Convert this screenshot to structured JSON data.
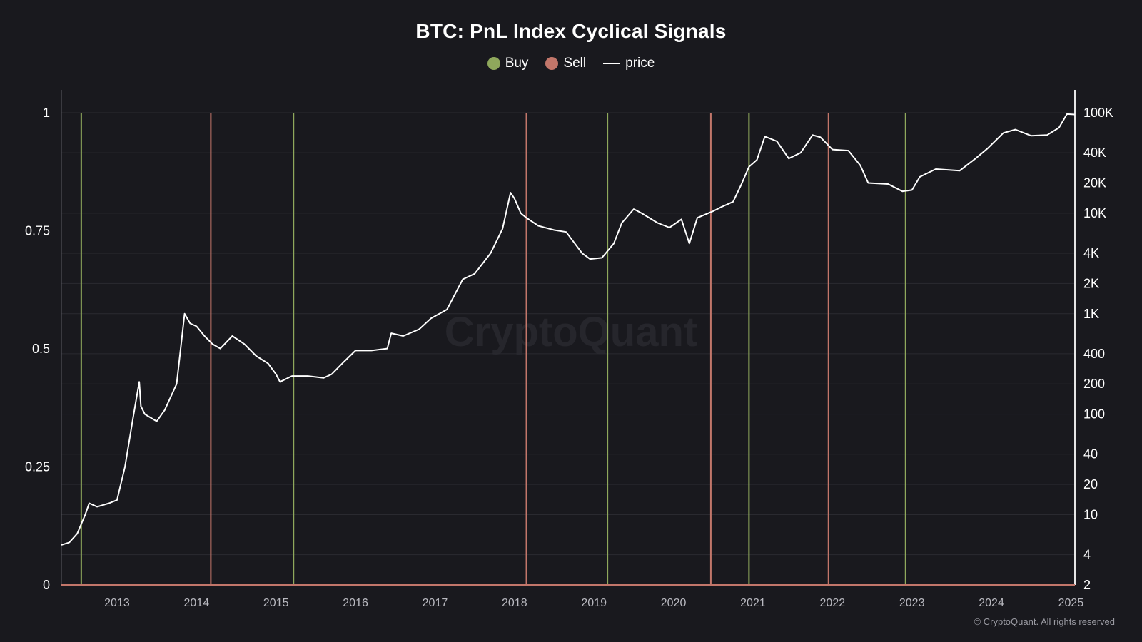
{
  "chart_data": {
    "type": "line",
    "title": "BTC: PnL Index Cyclical Signals",
    "legend": [
      {
        "name": "Buy",
        "color": "#8fa85c",
        "symbol": "dot"
      },
      {
        "name": "Sell",
        "color": "#c2766a",
        "symbol": "dot"
      },
      {
        "name": "price",
        "color": "#ffffff",
        "symbol": "line"
      }
    ],
    "legend_placement": "top-center",
    "grid": true,
    "x_axis": {
      "tick_labels": [
        "2013",
        "2014",
        "2015",
        "2016",
        "2017",
        "2018",
        "2019",
        "2020",
        "2021",
        "2022",
        "2023",
        "2024",
        "2025"
      ],
      "range": [
        2012.3,
        2025.05
      ]
    },
    "y_left": {
      "tick_labels": [
        "0",
        "0.25",
        "0.5",
        "0.75",
        "1"
      ],
      "ticks": [
        0,
        0.25,
        0.5,
        0.75,
        1
      ],
      "range": [
        0,
        1
      ]
    },
    "y_right": {
      "scale": "log",
      "tick_labels": [
        "2",
        "4",
        "10",
        "20",
        "40",
        "100",
        "200",
        "400",
        "1K",
        "2K",
        "4K",
        "10K",
        "20K",
        "40K",
        "100K"
      ],
      "ticks": [
        2,
        4,
        10,
        20,
        40,
        100,
        200,
        400,
        1000,
        2000,
        4000,
        10000,
        20000,
        40000,
        100000
      ],
      "range": [
        2,
        100000
      ]
    },
    "signals": {
      "buy": [
        2012.55,
        2015.22,
        2019.17,
        2020.95,
        2022.92
      ],
      "sell": [
        2014.18,
        2018.15,
        2020.47,
        2021.95
      ]
    },
    "series": [
      {
        "name": "price",
        "x": [
          2012.3,
          2012.4,
          2012.5,
          2012.6,
          2012.65,
          2012.75,
          2012.9,
          2013.0,
          2013.1,
          2013.2,
          2013.28,
          2013.3,
          2013.35,
          2013.5,
          2013.6,
          2013.75,
          2013.85,
          2013.92,
          2014.0,
          2014.1,
          2014.2,
          2014.3,
          2014.45,
          2014.6,
          2014.75,
          2014.9,
          2015.0,
          2015.05,
          2015.2,
          2015.4,
          2015.6,
          2015.7,
          2015.85,
          2016.0,
          2016.2,
          2016.4,
          2016.45,
          2016.6,
          2016.8,
          2016.95,
          2017.15,
          2017.35,
          2017.5,
          2017.7,
          2017.85,
          2017.95,
          2018.0,
          2018.08,
          2018.15,
          2018.3,
          2018.5,
          2018.65,
          2018.85,
          2018.95,
          2019.1,
          2019.25,
          2019.35,
          2019.5,
          2019.6,
          2019.8,
          2019.95,
          2020.1,
          2020.2,
          2020.3,
          2020.5,
          2020.6,
          2020.75,
          2020.85,
          2020.95,
          2021.05,
          2021.15,
          2021.3,
          2021.45,
          2021.6,
          2021.75,
          2021.85,
          2022.0,
          2022.2,
          2022.35,
          2022.45,
          2022.7,
          2022.88,
          2023.0,
          2023.1,
          2023.3,
          2023.6,
          2023.8,
          2023.95,
          2024.15,
          2024.3,
          2024.5,
          2024.7,
          2024.85,
          2024.95,
          2025.05
        ],
        "y": [
          5,
          5.3,
          6.5,
          10,
          13,
          12,
          13,
          14,
          30,
          90,
          210,
          120,
          100,
          85,
          110,
          200,
          1000,
          800,
          750,
          600,
          500,
          450,
          600,
          500,
          380,
          320,
          250,
          210,
          240,
          240,
          230,
          250,
          330,
          430,
          430,
          450,
          640,
          600,
          700,
          900,
          1100,
          2200,
          2500,
          4000,
          7000,
          16000,
          14000,
          10000,
          9000,
          7500,
          6800,
          6500,
          4000,
          3500,
          3600,
          5000,
          8000,
          11000,
          10000,
          8000,
          7200,
          8700,
          5000,
          9000,
          10500,
          11500,
          13000,
          19000,
          29000,
          34000,
          58000,
          52000,
          35000,
          40000,
          60000,
          57000,
          43000,
          42000,
          30000,
          20000,
          19500,
          16500,
          17000,
          23000,
          27500,
          26500,
          35000,
          44000,
          63000,
          68000,
          59000,
          60000,
          71000,
          97000,
          96000
        ]
      },
      {
        "name": "Buy",
        "x": [
          2012.3,
          2025.05
        ],
        "y": [
          0,
          0
        ]
      },
      {
        "name": "Sell",
        "x": [
          2012.3,
          2025.05
        ],
        "y": [
          0,
          0
        ]
      }
    ]
  },
  "watermark": "CryptoQuant",
  "copyright": "© CryptoQuant. All rights reserved",
  "colors": {
    "background": "#19191e",
    "buy": "#8fa85c",
    "sell": "#c2766a",
    "price": "#ffffff",
    "grid": "#2a2a30",
    "axis": "#5a5a62"
  }
}
